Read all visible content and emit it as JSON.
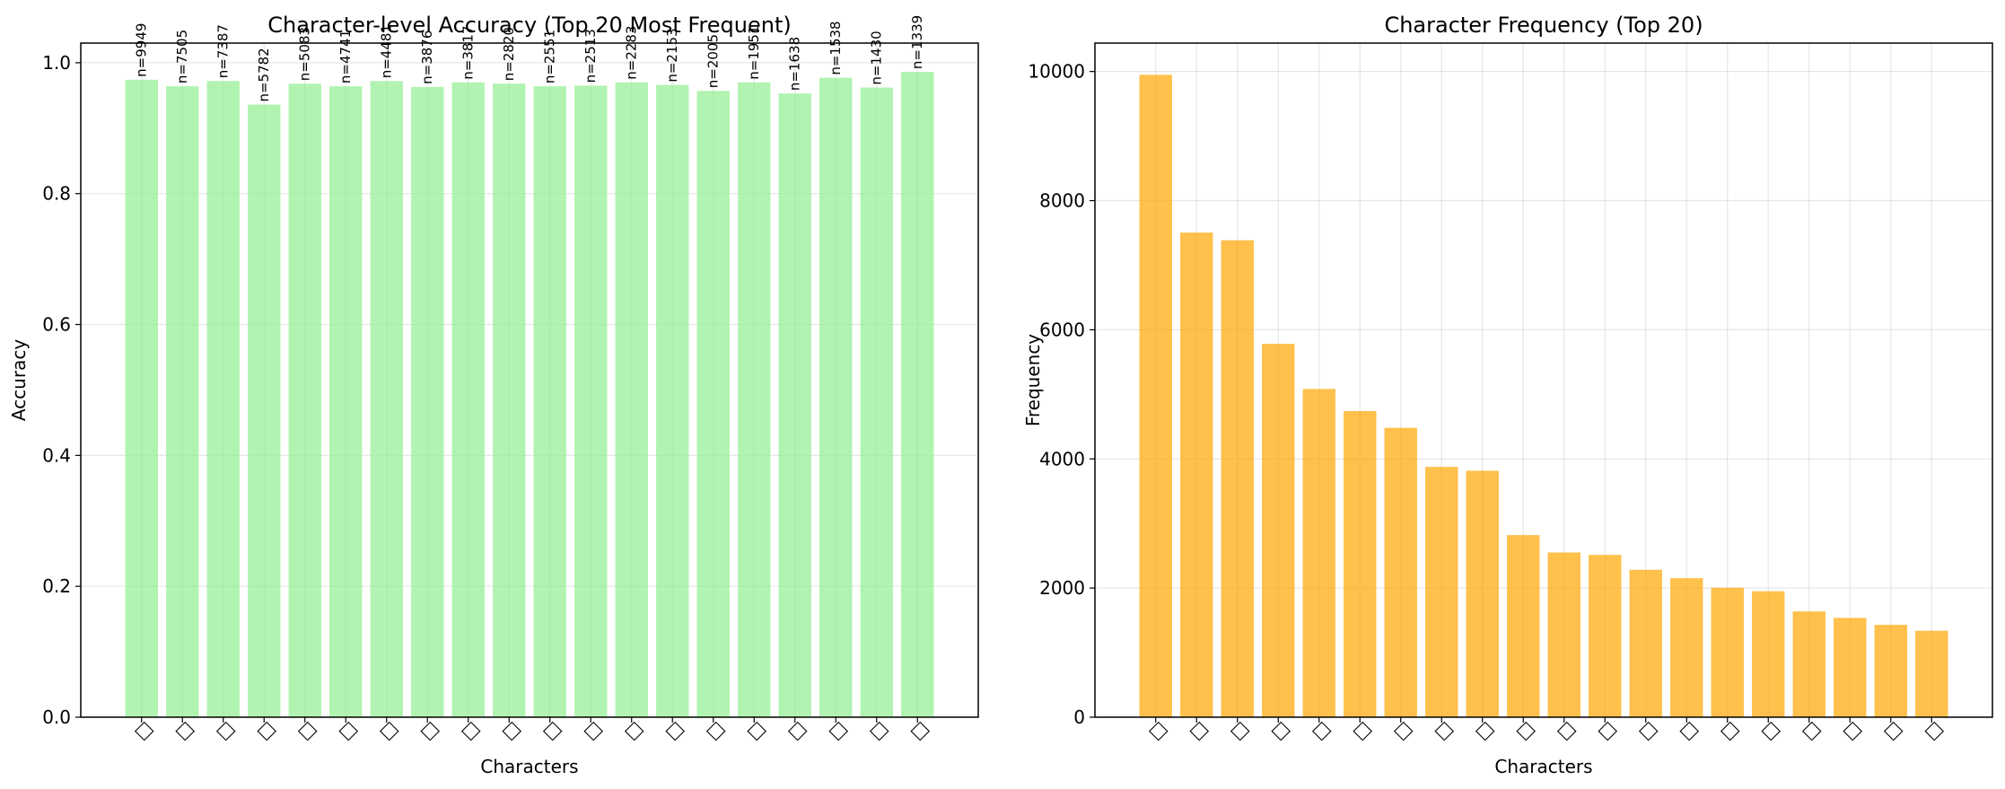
{
  "chart_data": [
    {
      "type": "bar",
      "title": "Character-level Accuracy (Top 20 Most Frequent)",
      "xlabel": "Characters",
      "ylabel": "Accuracy",
      "ylim": [
        0,
        1.03
      ],
      "yticks": [
        0.0,
        0.2,
        0.4,
        0.6,
        0.8,
        1.0
      ],
      "ytick_labels": [
        "0.0",
        "0.2",
        "0.4",
        "0.6",
        "0.8",
        "1.0"
      ],
      "categories": [
        "□",
        "□",
        "□",
        "□",
        "□",
        "□",
        "□",
        "□",
        "□",
        "□",
        "□",
        "□",
        "□",
        "□",
        "□",
        "□",
        "□",
        "□",
        "□",
        "□"
      ],
      "values": [
        0.974,
        0.964,
        0.972,
        0.936,
        0.968,
        0.964,
        0.972,
        0.963,
        0.97,
        0.968,
        0.964,
        0.965,
        0.97,
        0.966,
        0.957,
        0.97,
        0.953,
        0.977,
        0.962,
        0.986
      ],
      "data_labels": [
        "n=9949",
        "n=7505",
        "n=7387",
        "n=5782",
        "n=5083",
        "n=4741",
        "n=4481",
        "n=3876",
        "n=3817",
        "n=2820",
        "n=2551",
        "n=2513",
        "n=2283",
        "n=2153",
        "n=2005",
        "n=1951",
        "n=1638",
        "n=1538",
        "n=1430",
        "n=1339"
      ],
      "color": "#90ee90",
      "grid": true
    },
    {
      "type": "bar",
      "title": "Character Frequency (Top 20)",
      "xlabel": "Characters",
      "ylabel": "Frequency",
      "ylim": [
        0,
        10440
      ],
      "yticks": [
        0,
        2000,
        4000,
        6000,
        8000,
        10000
      ],
      "ytick_labels": [
        "0",
        "2000",
        "4000",
        "6000",
        "8000",
        "10000"
      ],
      "categories": [
        "□",
        "□",
        "□",
        "□",
        "□",
        "□",
        "□",
        "□",
        "□",
        "□",
        "□",
        "□",
        "□",
        "□",
        "□",
        "□",
        "□",
        "□",
        "□",
        "□"
      ],
      "values": [
        9949,
        7505,
        7387,
        5782,
        5083,
        4741,
        4481,
        3876,
        3817,
        2820,
        2551,
        2513,
        2283,
        2153,
        2005,
        1951,
        1638,
        1538,
        1430,
        1339
      ],
      "color": "#ffa500",
      "grid": true
    }
  ]
}
